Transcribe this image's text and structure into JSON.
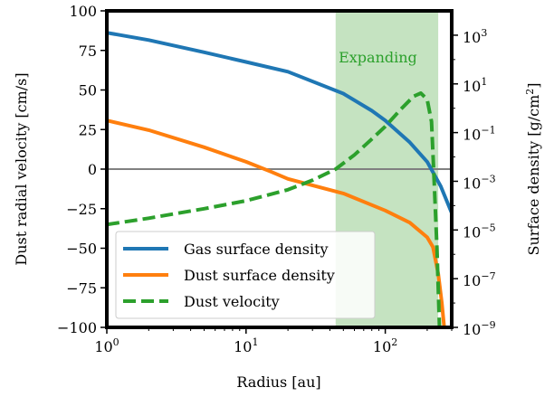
{
  "chart_data": {
    "type": "line",
    "xlabel": "Radius [au]",
    "ylabel_left": "Dust radial velocity [cm/s]",
    "ylabel_right": "Surface density [g/cm",
    "ylabel_right_sup": "2",
    "ylabel_right_close": "]",
    "x_scale": "log",
    "xlim": [
      1,
      300
    ],
    "ylim_left": [
      -100,
      100
    ],
    "ylim_right_log10": [
      -9,
      4
    ],
    "x_ticks": [
      {
        "value": 1,
        "base": "10",
        "exp": "0"
      },
      {
        "value": 10,
        "base": "10",
        "exp": "1"
      },
      {
        "value": 100,
        "base": "10",
        "exp": "2"
      }
    ],
    "y_left_ticks": [
      {
        "value": 100,
        "label": "100"
      },
      {
        "value": 75,
        "label": "75"
      },
      {
        "value": 50,
        "label": "50"
      },
      {
        "value": 25,
        "label": "25"
      },
      {
        "value": 0,
        "label": "0"
      },
      {
        "value": -25,
        "label": "−25"
      },
      {
        "value": -50,
        "label": "−50"
      },
      {
        "value": -75,
        "label": "−75"
      },
      {
        "value": -100,
        "label": "−100"
      }
    ],
    "y_right_ticks": [
      {
        "exp_value": 3,
        "base": "10",
        "exp": "3"
      },
      {
        "exp_value": 1,
        "base": "10",
        "exp": "1"
      },
      {
        "exp_value": -1,
        "base": "10",
        "exp": "−1"
      },
      {
        "exp_value": -3,
        "base": "10",
        "exp": "−3"
      },
      {
        "exp_value": -5,
        "base": "10",
        "exp": "−5"
      },
      {
        "exp_value": -7,
        "base": "10",
        "exp": "−7"
      },
      {
        "exp_value": -9,
        "base": "10",
        "exp": "−9"
      }
    ],
    "shaded_region": {
      "x_start": 44,
      "x_end": 240,
      "label": "Expanding",
      "color": "#c5e3c1",
      "label_color": "#2ca02c"
    },
    "zero_line": {
      "y": 0,
      "color": "#808080"
    },
    "legend_position": "lower-left",
    "series": [
      {
        "name": "Gas surface density",
        "axis": "right",
        "color": "#1f77b4",
        "style": "solid",
        "points": [
          [
            1,
            3.1
          ],
          [
            2,
            2.8
          ],
          [
            5,
            2.3
          ],
          [
            10,
            1.9
          ],
          [
            20,
            1.5
          ],
          [
            50,
            0.6
          ],
          [
            80,
            -0.1
          ],
          [
            100,
            -0.5
          ],
          [
            150,
            -1.4
          ],
          [
            200,
            -2.2
          ],
          [
            250,
            -3.2
          ],
          [
            300,
            -4.3
          ]
        ]
      },
      {
        "name": "Dust surface density",
        "axis": "right",
        "color": "#ff7f0e",
        "style": "solid",
        "points": [
          [
            1,
            -0.5
          ],
          [
            2,
            -0.9
          ],
          [
            5,
            -1.6
          ],
          [
            10,
            -2.2
          ],
          [
            15,
            -2.6
          ],
          [
            20,
            -2.9
          ],
          [
            50,
            -3.5
          ],
          [
            100,
            -4.2
          ],
          [
            150,
            -4.7
          ],
          [
            200,
            -5.3
          ],
          [
            220,
            -5.7
          ],
          [
            240,
            -6.8
          ],
          [
            255,
            -8.0
          ],
          [
            265,
            -9.0
          ]
        ]
      },
      {
        "name": "Dust velocity",
        "axis": "left",
        "color": "#2ca02c",
        "style": "dashed",
        "points": [
          [
            1,
            -35
          ],
          [
            2,
            -31
          ],
          [
            5,
            -25
          ],
          [
            10,
            -20
          ],
          [
            20,
            -13
          ],
          [
            30,
            -7
          ],
          [
            44,
            0
          ],
          [
            60,
            9
          ],
          [
            80,
            19
          ],
          [
            100,
            27
          ],
          [
            130,
            38
          ],
          [
            160,
            46
          ],
          [
            180,
            48
          ],
          [
            200,
            44
          ],
          [
            215,
            30
          ],
          [
            225,
            -10
          ],
          [
            235,
            -50
          ],
          [
            245,
            -100
          ]
        ]
      }
    ]
  }
}
